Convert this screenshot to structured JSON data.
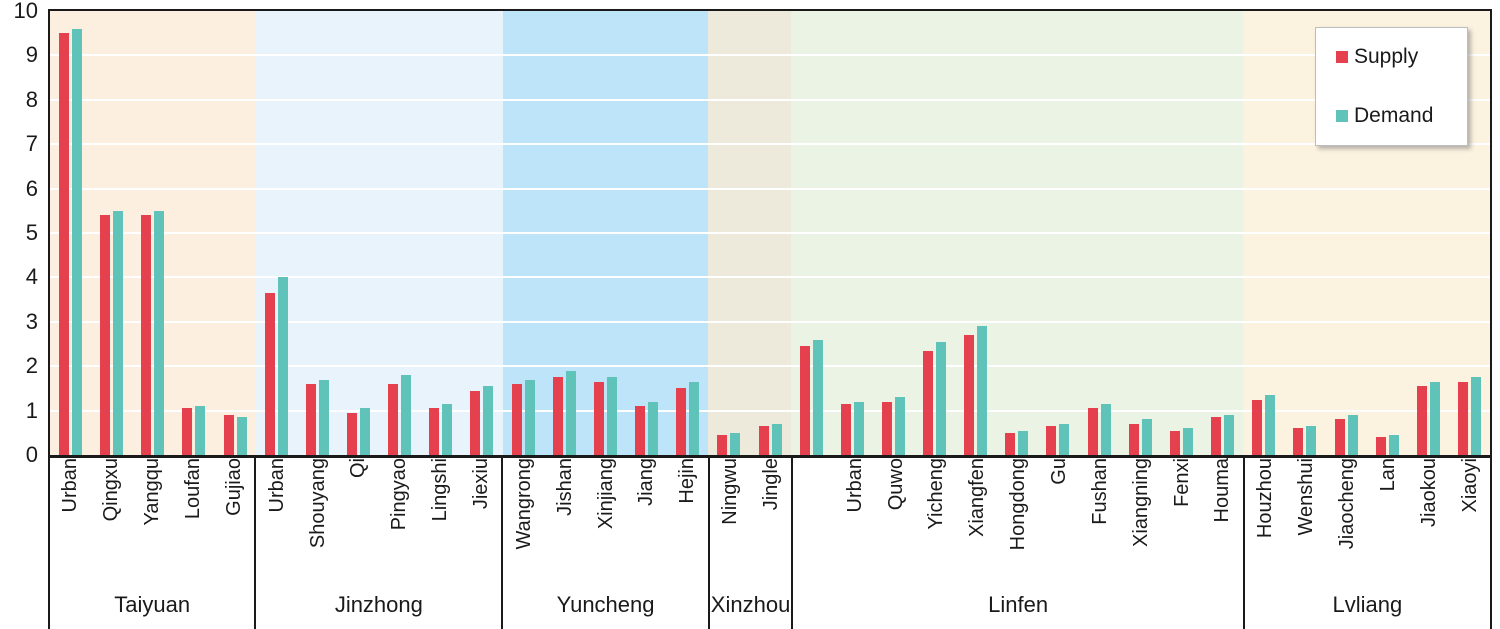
{
  "chart_data": {
    "type": "bar",
    "title": "",
    "xlabel": "",
    "ylabel": "",
    "ylim": [
      0,
      10
    ],
    "yticks": [
      0,
      1,
      2,
      3,
      4,
      5,
      6,
      7,
      8,
      9,
      10
    ],
    "grid": "horizontal white gridlines at each integer",
    "legend_position": "top-right",
    "axis_color": "#1A1A1A",
    "gridline_color": "#FFFFFF",
    "series": [
      {
        "name": "Supply",
        "color": "#E5404E"
      },
      {
        "name": "Demand",
        "color": "#5FC3B9"
      }
    ],
    "groups": [
      {
        "name": "Taiyuan",
        "background": "#FDEFDF",
        "districts": [
          {
            "label": "Urban",
            "supply": 9.5,
            "demand": 9.6
          },
          {
            "label": "Qingxu",
            "supply": 5.4,
            "demand": 5.5
          },
          {
            "label": "Yangqu",
            "supply": 5.4,
            "demand": 5.5
          },
          {
            "label": "Loufan",
            "supply": 1.05,
            "demand": 1.1
          },
          {
            "label": "Gujiao",
            "supply": 0.9,
            "demand": 0.85
          }
        ]
      },
      {
        "name": "Jinzhong",
        "background": "#E8F3FB",
        "districts": [
          {
            "label": "Urban",
            "supply": 3.65,
            "demand": 4.0
          },
          {
            "label": "Shouyang",
            "supply": 1.6,
            "demand": 1.7
          },
          {
            "label": "Qi",
            "supply": 0.95,
            "demand": 1.05
          },
          {
            "label": "Pingyao",
            "supply": 1.6,
            "demand": 1.8
          },
          {
            "label": "Lingshi",
            "supply": 1.05,
            "demand": 1.15
          },
          {
            "label": "Jiexiu",
            "supply": 1.45,
            "demand": 1.55
          }
        ]
      },
      {
        "name": "Yuncheng",
        "background": "#BEE4FA",
        "districts": [
          {
            "label": "Wangrong",
            "supply": 1.6,
            "demand": 1.7
          },
          {
            "label": "Jishan",
            "supply": 1.75,
            "demand": 1.9
          },
          {
            "label": "Xinjiang",
            "supply": 1.65,
            "demand": 1.75
          },
          {
            "label": "Jiang",
            "supply": 1.1,
            "demand": 1.2
          },
          {
            "label": "Hejin",
            "supply": 1.5,
            "demand": 1.65
          }
        ]
      },
      {
        "name": "Xinzhou",
        "background": "#EDEADB",
        "districts": [
          {
            "label": "Ningwu",
            "supply": 0.45,
            "demand": 0.5
          },
          {
            "label": "Jingle",
            "supply": 0.65,
            "demand": 0.7
          }
        ]
      },
      {
        "name": "Linfen",
        "background": "#EAF3E4",
        "districts": [
          {
            "label": "",
            "supply": 2.45,
            "demand": 2.6
          },
          {
            "label": "Urban",
            "supply": 1.15,
            "demand": 1.2
          },
          {
            "label": "Quwo",
            "supply": 1.2,
            "demand": 1.3
          },
          {
            "label": "Yicheng",
            "supply": 2.35,
            "demand": 2.55
          },
          {
            "label": "Xiangfen",
            "supply": 2.7,
            "demand": 2.9
          },
          {
            "label": "Hongdong",
            "supply": 0.5,
            "demand": 0.55
          },
          {
            "label": "Gu",
            "supply": 0.65,
            "demand": 0.7
          },
          {
            "label": "Fushan",
            "supply": 1.05,
            "demand": 1.15
          },
          {
            "label": "Xiangning",
            "supply": 0.7,
            "demand": 0.8
          },
          {
            "label": "Fenxi",
            "supply": 0.55,
            "demand": 0.6
          },
          {
            "label": "Houma",
            "supply": 0.85,
            "demand": 0.9
          }
        ]
      },
      {
        "name": "Lvliang",
        "background": "#FCF2E0",
        "districts": [
          {
            "label": "Houzhou",
            "supply": 1.25,
            "demand": 1.35
          },
          {
            "label": "Wenshui",
            "supply": 0.6,
            "demand": 0.65
          },
          {
            "label": "Jiaocheng",
            "supply": 0.8,
            "demand": 0.9
          },
          {
            "label": "Lan",
            "supply": 0.4,
            "demand": 0.45
          },
          {
            "label": "Jiaokou",
            "supply": 1.55,
            "demand": 1.65
          },
          {
            "label": "Xiaoyi",
            "supply": 1.65,
            "demand": 1.75
          }
        ]
      }
    ]
  }
}
